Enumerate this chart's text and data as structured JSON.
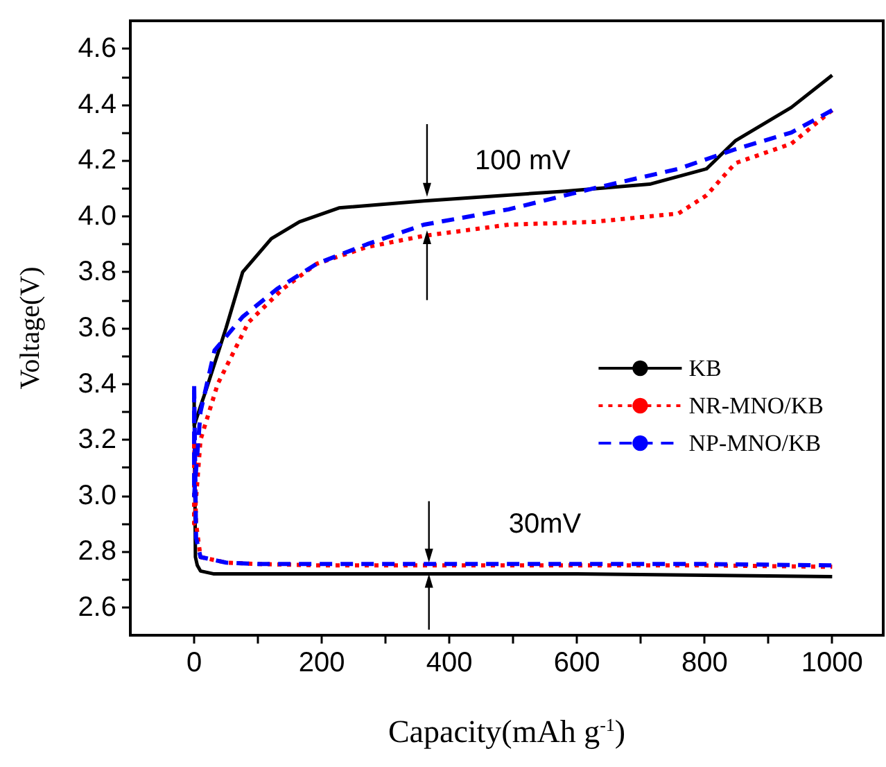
{
  "chart_data": {
    "type": "line",
    "xlabel": "Capacity(mAh g$^{-1}$)",
    "ylabel": "Voltage(V)",
    "xlim": [
      -100,
      1080
    ],
    "ylim": [
      2.5,
      4.7
    ],
    "xticks": [
      0,
      {
        "value": 100,
        "label": null
      },
      200,
      {
        "value": 300,
        "label": null
      },
      400,
      {
        "value": 500,
        "label": null
      },
      600,
      {
        "value": 700,
        "label": null
      },
      800,
      {
        "value": 900,
        "label": null
      },
      1000
    ],
    "yticks": [
      2.6,
      {
        "value": 2.7,
        "label": null
      },
      2.8,
      {
        "value": 2.9,
        "label": null
      },
      {
        "value": 3,
        "label": "3.0"
      },
      {
        "value": 3.1,
        "label": null
      },
      3.2,
      {
        "value": 3.3,
        "label": null
      },
      3.4,
      {
        "value": 3.5,
        "label": null
      },
      3.6,
      {
        "value": 3.7,
        "label": null
      },
      3.8,
      {
        "value": 3.9,
        "label": null
      },
      {
        "value": 4,
        "label": "4.0"
      },
      {
        "value": 4.1,
        "label": null
      },
      4.2,
      {
        "value": 4.3,
        "label": null
      },
      4.4,
      {
        "value": 4.5,
        "label": null
      },
      4.6
    ],
    "grid": false,
    "legend": "right",
    "marker": "none",
    "series": [
      {
        "name": "KB",
        "color": "#000000",
        "line_style": "solid",
        "x": [
          1000,
          936,
          848,
          803,
          714,
          581,
          360,
          227,
          165,
          121,
          76,
          50,
          19,
          10,
          0,
          0,
          2,
          5,
          10,
          30,
          100,
          200,
          400,
          600,
          800,
          1000
        ],
        "values": [
          4.505,
          4.39,
          4.27,
          4.17,
          4.115,
          4.09,
          4.055,
          4.03,
          3.98,
          3.92,
          3.8,
          3.6,
          3.38,
          3.32,
          3.25,
          3.35,
          2.78,
          2.75,
          2.73,
          2.72,
          2.72,
          2.72,
          2.72,
          2.72,
          2.715,
          2.71
        ]
      },
      {
        "name": "NR-MNO/KB",
        "color": "#ff0000",
        "line_style": "dotted",
        "x": [
          1000,
          936,
          848,
          803,
          759,
          626,
          493,
          360,
          271,
          192,
          139,
          85,
          37,
          10,
          0,
          0,
          3,
          10,
          30,
          50,
          100,
          200,
          400,
          600,
          800,
          1000
        ],
        "values": [
          4.38,
          4.26,
          4.19,
          4.075,
          4.01,
          3.98,
          3.97,
          3.93,
          3.89,
          3.83,
          3.74,
          3.62,
          3.4,
          3.2,
          2.9,
          3.2,
          2.9,
          2.78,
          2.77,
          2.76,
          2.755,
          2.75,
          2.75,
          2.75,
          2.75,
          2.745
        ]
      },
      {
        "name": "NP-MNO/KB",
        "color": "#0000ff",
        "line_style": "dashed",
        "x": [
          1000,
          936,
          848,
          759,
          626,
          493,
          360,
          271,
          192,
          130,
          76,
          32,
          10,
          0,
          0,
          3,
          10,
          30,
          50,
          100,
          200,
          400,
          600,
          800,
          1000
        ],
        "values": [
          4.38,
          4.3,
          4.24,
          4.17,
          4.1,
          4.025,
          3.97,
          3.9,
          3.83,
          3.74,
          3.64,
          3.52,
          3.3,
          3.0,
          3.4,
          2.85,
          2.78,
          2.77,
          2.76,
          2.755,
          2.755,
          2.755,
          2.755,
          2.755,
          2.75
        ]
      }
    ],
    "annotations": [
      "100 mV",
      "30mV"
    ]
  }
}
